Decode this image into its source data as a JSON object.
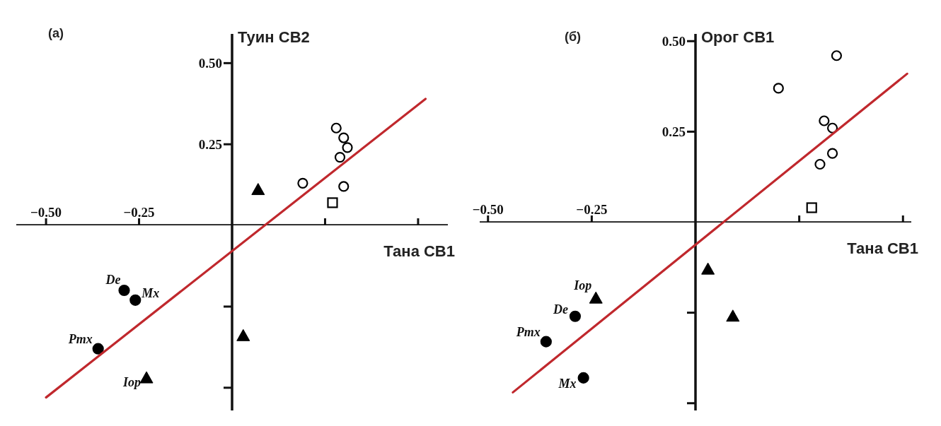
{
  "chart_data": [
    {
      "type": "scatter",
      "title": "(а)",
      "xlabel": "Тана СВ1",
      "ylabel": "Туин СВ2",
      "xlim": [
        -0.58,
        0.58
      ],
      "ylim": [
        -0.57,
        0.59
      ],
      "xticks": [
        {
          "value": -0.5,
          "label": "−0.50"
        },
        {
          "value": -0.25,
          "label": "−0.25"
        },
        {
          "value": 0.25,
          "label": null
        },
        {
          "value": 0.5,
          "label": null
        }
      ],
      "yticks": [
        {
          "value": 0.5,
          "label": "0.50"
        },
        {
          "value": 0.25,
          "label": "0.25"
        },
        {
          "value": -0.25,
          "label": null
        },
        {
          "value": -0.5,
          "label": null
        }
      ],
      "series": [
        {
          "type": "scatter",
          "marker": "open-circle",
          "color": "#000000",
          "x": [
            0.28,
            0.3,
            0.31,
            0.29,
            0.19,
            0.3
          ],
          "values": [
            0.3,
            0.27,
            0.24,
            0.21,
            0.13,
            0.12
          ]
        },
        {
          "type": "scatter",
          "marker": "square",
          "color": "#000000",
          "x": [
            0.27
          ],
          "values": [
            0.07
          ]
        },
        {
          "type": "scatter",
          "marker": "triangle",
          "color": "#000000",
          "x": [
            0.07,
            0.03,
            -0.23
          ],
          "values": [
            0.11,
            -0.34,
            -0.47
          ]
        },
        {
          "type": "scatter",
          "marker": "circle",
          "color": "#000000",
          "x": [
            -0.29,
            -0.26,
            -0.36
          ],
          "values": [
            -0.2,
            -0.23,
            -0.38
          ]
        },
        {
          "type": "line",
          "marker": "none",
          "color": "#c0282d",
          "x": [
            -0.5,
            0.52
          ],
          "values": [
            -0.53,
            0.39
          ]
        }
      ],
      "annotations": [
        {
          "text": "De",
          "x": -0.29,
          "y": -0.2
        },
        {
          "text": "Mx",
          "x": -0.26,
          "y": -0.23
        },
        {
          "text": "Pmx",
          "x": -0.36,
          "y": -0.38
        },
        {
          "text": "Iop",
          "x": -0.23,
          "y": -0.47
        }
      ]
    },
    {
      "type": "scatter",
      "title": "(б)",
      "xlabel": "Тана СВ1",
      "ylabel": "Орог СВ1",
      "xlim": [
        -0.52,
        0.52
      ],
      "ylim": [
        -0.52,
        0.52
      ],
      "xticks": [
        {
          "value": -0.5,
          "label": "−0.50"
        },
        {
          "value": -0.25,
          "label": "−0.25"
        },
        {
          "value": 0.25,
          "label": null
        },
        {
          "value": 0.5,
          "label": null
        }
      ],
      "yticks": [
        {
          "value": 0.5,
          "label": "0.50"
        },
        {
          "value": 0.25,
          "label": "0.25"
        },
        {
          "value": -0.25,
          "label": null
        },
        {
          "value": -0.5,
          "label": null
        }
      ],
      "series": [
        {
          "type": "scatter",
          "marker": "open-circle",
          "color": "#000000",
          "x": [
            0.34,
            0.2,
            0.31,
            0.33,
            0.33,
            0.3
          ],
          "values": [
            0.46,
            0.37,
            0.28,
            0.26,
            0.19,
            0.16
          ]
        },
        {
          "type": "scatter",
          "marker": "square",
          "color": "#000000",
          "x": [
            0.28
          ],
          "values": [
            0.04
          ]
        },
        {
          "type": "scatter",
          "marker": "triangle",
          "color": "#000000",
          "x": [
            0.03,
            0.09,
            -0.24
          ],
          "values": [
            -0.13,
            -0.26,
            -0.21
          ]
        },
        {
          "type": "scatter",
          "marker": "circle",
          "color": "#000000",
          "x": [
            -0.29,
            -0.36,
            -0.27
          ],
          "values": [
            -0.26,
            -0.33,
            -0.43
          ]
        },
        {
          "type": "line",
          "marker": "none",
          "color": "#c0282d",
          "x": [
            -0.44,
            0.51
          ],
          "values": [
            -0.47,
            0.41
          ]
        }
      ],
      "annotations": [
        {
          "text": "Iop",
          "x": -0.24,
          "y": -0.21
        },
        {
          "text": "De",
          "x": -0.29,
          "y": -0.26
        },
        {
          "text": "Pmx",
          "x": -0.36,
          "y": -0.33
        },
        {
          "text": "Mx",
          "x": -0.27,
          "y": -0.43
        }
      ]
    }
  ]
}
